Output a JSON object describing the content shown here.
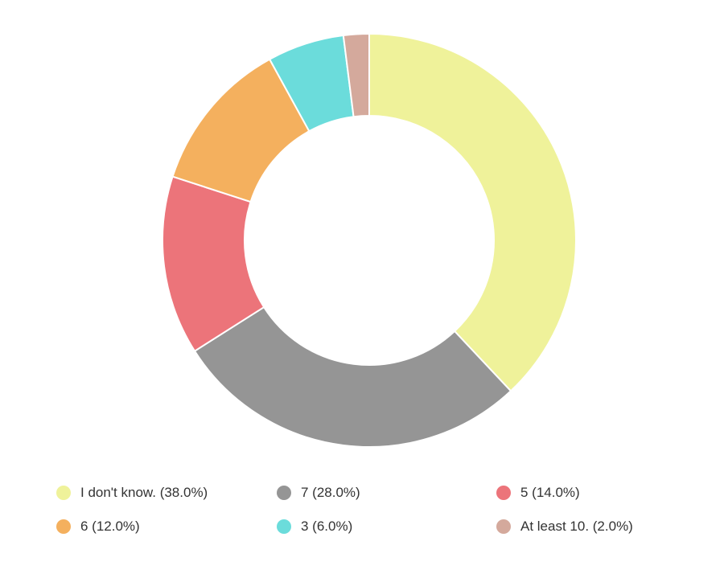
{
  "chart_data": {
    "type": "pie",
    "variant": "donut",
    "slices": [
      {
        "label": "I don't know.",
        "value": 38.0,
        "color": "#EFF29A",
        "legend_text": "I don't know. (38.0%)"
      },
      {
        "label": "7",
        "value": 28.0,
        "color": "#959595",
        "legend_text": "7 (28.0%)"
      },
      {
        "label": "5",
        "value": 14.0,
        "color": "#EC747A",
        "legend_text": "5 (14.0%)"
      },
      {
        "label": "6",
        "value": 12.0,
        "color": "#F4B05E",
        "legend_text": "6 (12.0%)"
      },
      {
        "label": "3",
        "value": 6.0,
        "color": "#6BDCDB",
        "legend_text": "3 (6.0%)"
      },
      {
        "label": "At least 10.",
        "value": 2.0,
        "color": "#D4A99C",
        "legend_text": "At least 10. (2.0%)"
      }
    ],
    "legend_position": "bottom",
    "title": ""
  }
}
